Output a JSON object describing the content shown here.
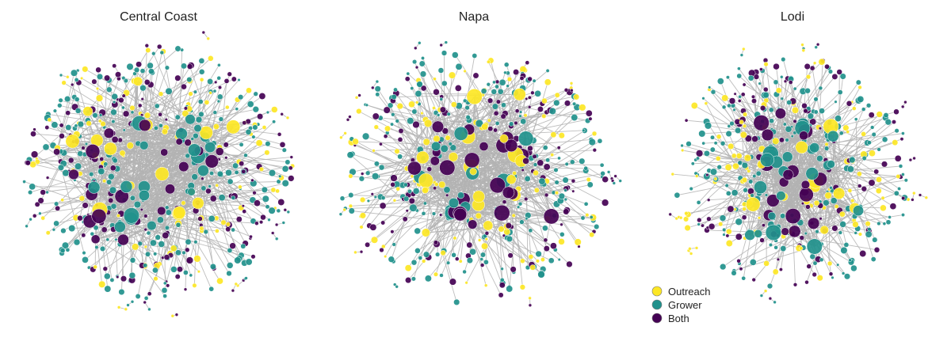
{
  "panels": [
    {
      "title": "Central Coast"
    },
    {
      "title": "Napa"
    },
    {
      "title": "Lodi"
    }
  ],
  "legend": {
    "items": [
      {
        "label": "Outreach",
        "color": "#fde725"
      },
      {
        "label": "Grower",
        "color": "#21918c"
      },
      {
        "label": "Both",
        "color": "#440154"
      }
    ]
  },
  "edge_color": "#b3b3b3"
}
